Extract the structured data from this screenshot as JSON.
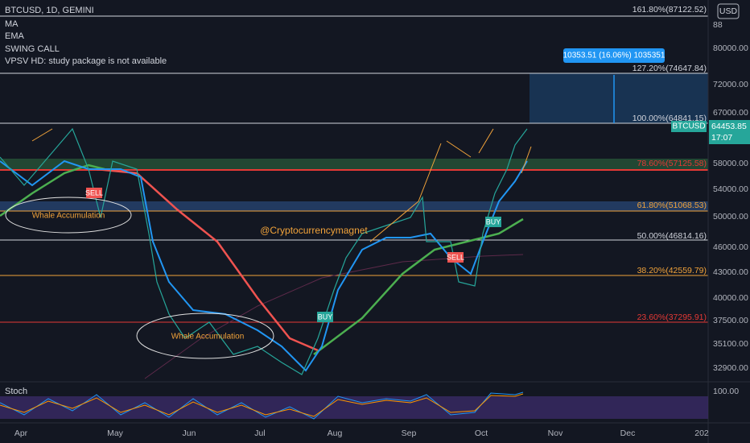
{
  "header": {
    "symbol": "BTCUSD, 1D, GEMINI",
    "indicators": [
      "MA",
      "EMA",
      "SWING CALL",
      "VPSV HD: study package is not available"
    ],
    "currency": "USD"
  },
  "price_axis": {
    "labels": [
      "88",
      "80000.00",
      "72000.00",
      "67000.00",
      "58000.00",
      "54000.00",
      "50000.00",
      "46000.00",
      "43000.00",
      "40000.00",
      "37500.00",
      "35100.00",
      "32900.00"
    ],
    "last_price": "64453.85",
    "countdown": "17:07",
    "symbol_tag": "BTCUSD"
  },
  "fib_levels": [
    "161.80%(87122.52)",
    "127.20%(74647.84)",
    "100.00%(64841.15)",
    "78.60%(57125.58)",
    "61.80%(51068.53)",
    "50.00%(46814.16)",
    "38.20%(42559.79)",
    "23.60%(37295.91)"
  ],
  "annotations": {
    "watermark": "@Cryptocurrencymagnet",
    "whale_1": "Whale Accumulation",
    "whale_2": "Whale Accumulation",
    "sell_1": "SELL",
    "sell_2": "SELL",
    "buy_1": "BUY",
    "buy_2": "BUY",
    "measure": "10353.51 (16.06%) 1035351"
  },
  "stoch": {
    "name": "Stoch",
    "axis": "100.00"
  },
  "time_axis": [
    "Apr",
    "May",
    "Jun",
    "Jul",
    "Aug",
    "Sep",
    "Oct",
    "Nov",
    "Dec",
    "202"
  ]
}
